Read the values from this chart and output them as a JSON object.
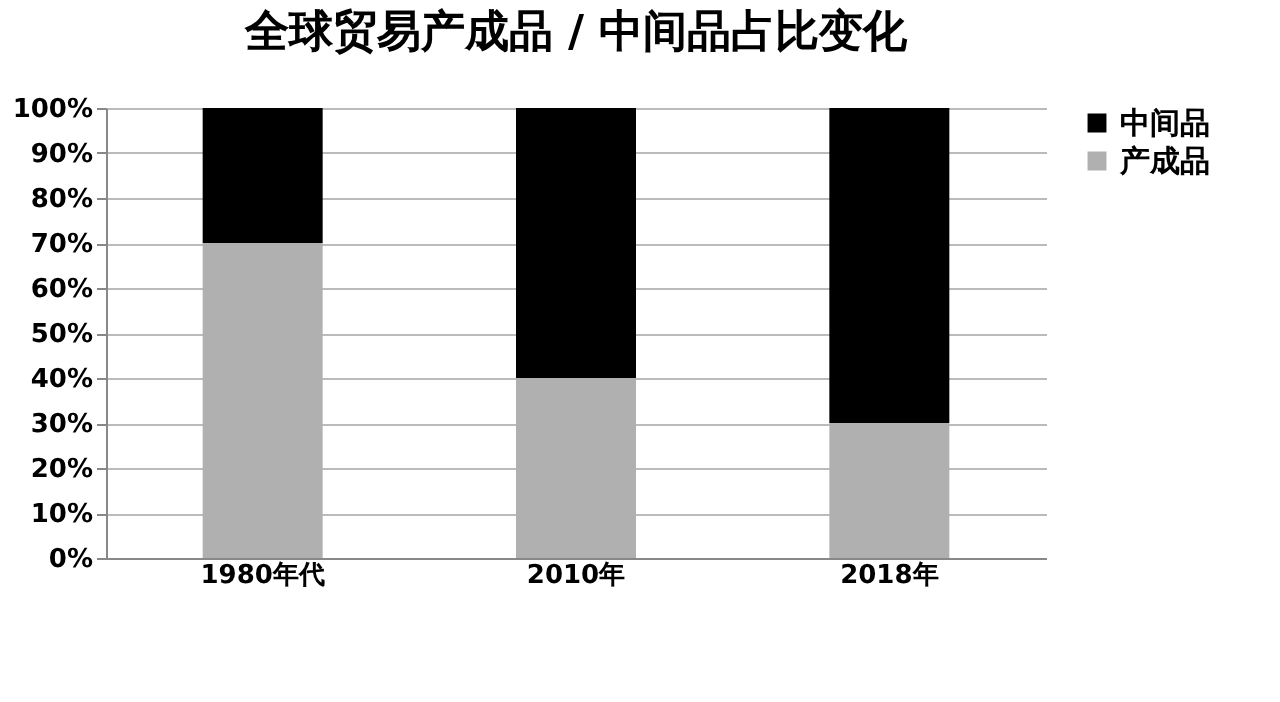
{
  "chart_data": {
    "type": "bar",
    "title": "全球贸易产成品 / 中间品占比变化",
    "categories": [
      "1980年代",
      "2010年",
      "2018年"
    ],
    "stacked": true,
    "series": [
      {
        "name": "产成品",
        "color": "#b0b0b0",
        "values": [
          70,
          40,
          30
        ]
      },
      {
        "name": "中间品",
        "color": "#000000",
        "values": [
          30,
          60,
          70
        ]
      }
    ],
    "ylim": [
      0,
      100
    ],
    "yticks": [
      {
        "value": 0,
        "label": "0%"
      },
      {
        "value": 10,
        "label": "10%"
      },
      {
        "value": 20,
        "label": "20%"
      },
      {
        "value": 30,
        "label": "30%"
      },
      {
        "value": 40,
        "label": "40%"
      },
      {
        "value": 50,
        "label": "50%"
      },
      {
        "value": 60,
        "label": "60%"
      },
      {
        "value": 70,
        "label": "70%"
      },
      {
        "value": 80,
        "label": "80%"
      },
      {
        "value": 90,
        "label": "90%"
      },
      {
        "value": 100,
        "label": "100%"
      }
    ],
    "grid": "y",
    "legend": "right"
  }
}
